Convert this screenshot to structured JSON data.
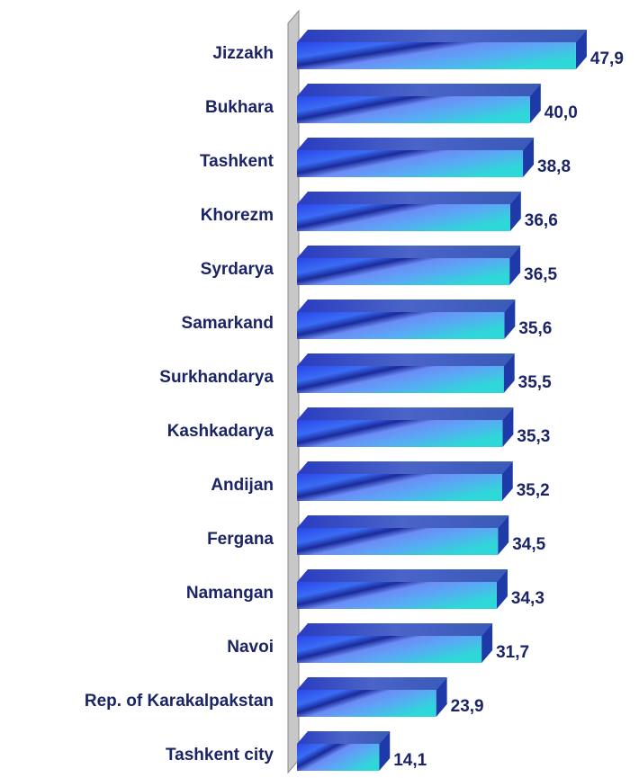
{
  "chart_data": {
    "type": "bar",
    "orientation": "horizontal",
    "categories": [
      "Jizzakh",
      "Bukhara",
      "Tashkent",
      "Khorezm",
      "Syrdarya",
      "Samarkand",
      "Surkhandarya",
      "Kashkadarya",
      "Andijan",
      "Fergana",
      "Namangan",
      "Navoi",
      "Rep. of Karakalpakstan",
      "Tashkent city"
    ],
    "values": [
      47.9,
      40.0,
      38.8,
      36.6,
      36.5,
      35.6,
      35.5,
      35.3,
      35.2,
      34.5,
      34.3,
      31.7,
      23.9,
      14.1
    ],
    "value_labels": [
      "47,9",
      "40,0",
      "38,8",
      "36,6",
      "36,5",
      "35,6",
      "35,5",
      "35,3",
      "35,2",
      "34,5",
      "34,3",
      "31,7",
      "23,9",
      "14,1"
    ],
    "color": "#2f5cf0",
    "xlim": [
      0,
      50
    ]
  }
}
